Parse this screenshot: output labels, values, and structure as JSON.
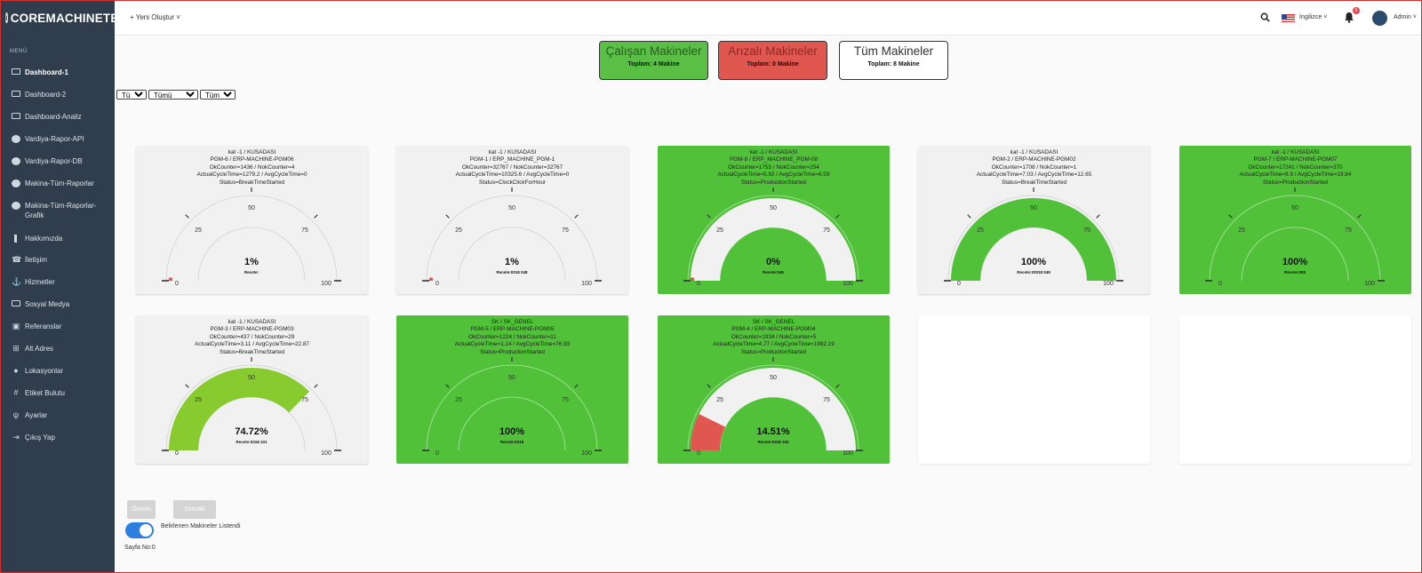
{
  "app": {
    "brand": "COREMACHINETEC",
    "brand_icon": "info-icon"
  },
  "sidebar": {
    "menu_title": "MENÜ",
    "items": [
      {
        "label": "Dashboard-1",
        "icon": "monitor-icon",
        "active": true
      },
      {
        "label": "Dashboard-2",
        "icon": "monitor-icon"
      },
      {
        "label": "Dashboard-Analiz",
        "icon": "monitor-icon"
      },
      {
        "label": "Vardiya-Rapor-API",
        "icon": "globe-icon"
      },
      {
        "label": "Vardiya-Rapor-DB",
        "icon": "globe-icon"
      },
      {
        "label": "Makina-Tüm-Raporlar",
        "icon": "globe-icon"
      },
      {
        "label": "Makina-Tüm-Raporlar-Grafik",
        "icon": "globe-icon"
      },
      {
        "label": "Hakkımızda",
        "icon": "info-icon"
      },
      {
        "label": "İletişim",
        "icon": "phone-icon"
      },
      {
        "label": "Hizmetler",
        "icon": "anchor-icon"
      },
      {
        "label": "Sosyal Medya",
        "icon": "monitor-icon"
      },
      {
        "label": "Referanslar",
        "icon": "image-icon"
      },
      {
        "label": "Alt Adres",
        "icon": "sitemap-icon"
      },
      {
        "label": "Lokasyonlar",
        "icon": "map-pin-icon"
      },
      {
        "label": "Etiket Bulutu",
        "icon": "hashtag-icon"
      },
      {
        "label": "Ayarlar",
        "icon": "plug-icon"
      },
      {
        "label": "Çıkış Yap",
        "icon": "logout-icon"
      }
    ]
  },
  "topbar": {
    "new_create": "+ Yeni Oluştur ˅",
    "language": "İngilizce ˅",
    "notification_count": "6",
    "user": "Admin ˅"
  },
  "summary": {
    "working": {
      "title": "Çalışan Makineler",
      "total": "Toplam: 4 Makine",
      "color": "#59bf45"
    },
    "faulty": {
      "title": "Arızalı Makineler",
      "total": "Toplam: 0 Makine",
      "color": "#e0574f"
    },
    "all": {
      "title": "Tüm Makineler",
      "total": "Toplam: 8 Makine"
    }
  },
  "filters": [
    {
      "selected": "Tümü"
    },
    {
      "selected": "Tümü"
    },
    {
      "selected": "Tümü"
    }
  ],
  "gauge_ticks": {
    "min": "0",
    "q1": "25",
    "mid": "50",
    "q3": "75",
    "max": "100"
  },
  "machines": [
    {
      "header": [
        "kat -1 / KUSADASI",
        "PGM-6 / ERP-MACHINE-PGM06",
        "OkCounter=1436 / NokCounter=4",
        "ActualCycleTime=1279.2 / AvgCycleTime=0",
        "Status=BreakTimeStarted"
      ],
      "bg": "grey",
      "value": 1,
      "value_label": "1%",
      "recete": "Recete:",
      "fill": "#e0574f"
    },
    {
      "header": [
        "kat -1 / KUSADASI",
        "PGM-1 / ERP_MACHINE_PGM-1",
        "OkCounter=32767 / NokCounter=32767",
        "ActualCycleTime=10325.6 / AvgCycleTime=0",
        "Status=ClockClickForHour"
      ],
      "bg": "grey",
      "value": 1,
      "value_label": "1%",
      "recete": "Recete:0318 048",
      "fill": "#e0574f"
    },
    {
      "header": [
        "kat -1 / KUSADASI",
        "PGM-8 / ERP_MACHINE_PGM-08",
        "OkCounter=1755 / NokCounter=254",
        "ActualCycleTime=5.92 / AvgCycleTime=6.59",
        "Status=ProductionStarted"
      ],
      "bg": "green",
      "value": 0,
      "value_label": "0%",
      "recete": "Recete:046",
      "fill": "#e0574f"
    },
    {
      "header": [
        "kat -1 / KUSADASI",
        "PGM-2 / ERP-MACHINE-PGM02",
        "OkCounter=1708 / NokCounter=1",
        "ActualCycleTime=7.03 / AvgCycleTime=12.65",
        "Status=BreakTimeStarted"
      ],
      "bg": "grey",
      "value": 100,
      "value_label": "100%",
      "recete": "Recete:20018 049",
      "fill": "#51c13a"
    },
    {
      "header": [
        "kat -1 / KUSADASI",
        "PGM-7 / ERP-MACHINE-PGM07",
        "OkCounter=17241 / NokCounter=370",
        "ActualCycleTime=9.9 / AvgCycleTime=19.84",
        "Status=ProductionStarted"
      ],
      "bg": "green",
      "value": 100,
      "value_label": "100%",
      "recete": "Recete:008",
      "fill": "#51c13a"
    },
    {
      "header": [
        "kat -1 / KUSADASI",
        "PGM-3 / ERP-MACHINE-PGM03",
        "OkCounter=437 / NokCounter=29",
        "ActualCycleTime=3.11 / AvgCycleTime=22.87",
        "Status=BreakTimeStarted"
      ],
      "bg": "grey",
      "value": 74.72,
      "value_label": "74.72%",
      "recete": "Recete:0318 101",
      "fill": "#88cb2e"
    },
    {
      "header": [
        "SK / SK_GENEL",
        "PGM-5 / ERP-MACHINE-PGM05",
        "OkCounter=1224 / NokCounter=11",
        "ActualCycleTime=1.14 / AvgCycleTime=76.93",
        "Status=ProductionStarted"
      ],
      "bg": "green",
      "value": 100,
      "value_label": "100%",
      "recete": "Recete:0318",
      "fill": "#51c13a"
    },
    {
      "header": [
        "SK / SK_GENEL",
        "PGM-4 / ERP-MACHINE-PGM04",
        "OkCounter=1934 / NokCounter=5",
        "ActualCycleTime=4.77 / AvgCycleTime=1982.19",
        "Status=ProductionStarted"
      ],
      "bg": "green",
      "value": 14.51,
      "value_label": "14.51%",
      "recete": "Recete:0318 102",
      "fill": "#e0574f"
    }
  ],
  "pager": {
    "prev": "Önceki",
    "next": "Sonraki",
    "toggle_label": "Belirlenen Makineler Listendi",
    "page_no": "Sayfa No:0"
  }
}
